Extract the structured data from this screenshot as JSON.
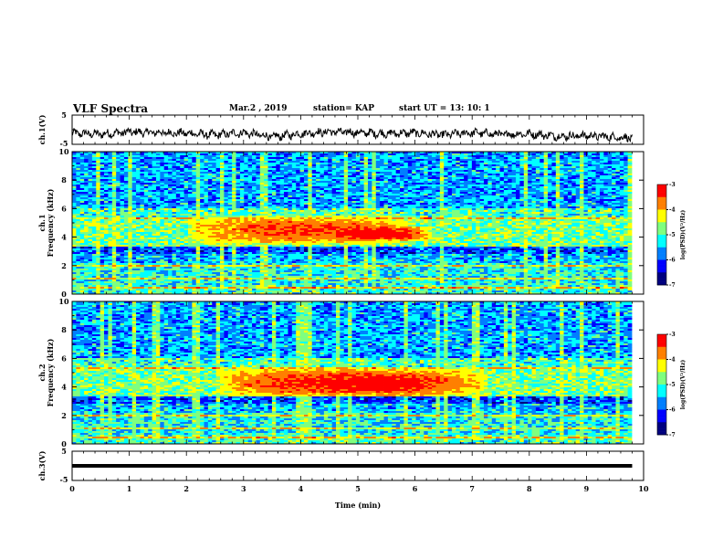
{
  "header": {
    "title": "VLF Spectra",
    "date": "Mar.2  , 2019",
    "station": "station= KAP",
    "start_ut": "start  UT  =    13: 10: 1"
  },
  "colors": {
    "colormap": [
      "#00007f",
      "#0000ff",
      "#007fff",
      "#00ffff",
      "#7fff7f",
      "#ffff00",
      "#ff7f00",
      "#ff0000"
    ]
  },
  "chart_data": [
    {
      "type": "line",
      "name": "ch1-waveform",
      "ylabel": "ch.1(V)",
      "ylim": [
        -5,
        5
      ],
      "yticks": [
        "5",
        "-5"
      ],
      "xlim": [
        0,
        10
      ],
      "x": [
        0,
        0.5,
        1,
        1.5,
        2,
        2.5,
        3,
        3.5,
        4,
        4.5,
        5,
        5.5,
        6,
        6.5,
        7,
        7.5,
        8,
        8.5,
        9,
        9.5,
        9.8
      ],
      "y": [
        -1.2,
        -1.5,
        -0.8,
        -1.0,
        -1.2,
        -1.8,
        -1.0,
        -2.5,
        -1.3,
        -0.7,
        -1.0,
        -1.3,
        -1.1,
        -1.8,
        -1.0,
        -1.6,
        -1.4,
        -2.2,
        -2.0,
        -2.5,
        -2.8
      ]
    },
    {
      "type": "heatmap",
      "name": "ch1-spectrogram",
      "ylabel": "ch.1\nFrequency  (kHz)",
      "xlim": [
        0,
        9.8
      ],
      "ylim": [
        0,
        10
      ],
      "yticks": [
        "0",
        "2",
        "4",
        "6",
        "8",
        "10"
      ],
      "colorbar": {
        "label": "log(PSD)(V²/Hz)",
        "range": [
          -7,
          -3
        ],
        "ticks": [
          "-3",
          "-4",
          "-5",
          "-6",
          "-7"
        ]
      },
      "features": [
        {
          "band_khz": [
            3.5,
            5.5
          ],
          "time_min": [
            2.0,
            6.0
          ],
          "level": -3.5
        },
        {
          "band_khz": [
            3.7,
            4.8
          ],
          "time_min": [
            4.3,
            6.3
          ],
          "level": -3.0
        }
      ]
    },
    {
      "type": "heatmap",
      "name": "ch2-spectrogram",
      "ylabel": "ch.2\nFrequency  (kHz)",
      "xlim": [
        0,
        9.8
      ],
      "ylim": [
        0,
        10
      ],
      "yticks": [
        "0",
        "2",
        "4",
        "6",
        "8",
        "10"
      ],
      "colorbar": {
        "label": "log(PSD)(V²/Hz)",
        "range": [
          -7,
          -3
        ],
        "ticks": [
          "-3",
          "-4",
          "-5",
          "-6",
          "-7"
        ]
      },
      "features": [
        {
          "band_khz": [
            3.3,
            5.3
          ],
          "time_min": [
            2.5,
            7.3
          ],
          "level": -3.2
        },
        {
          "band_khz": [
            3.6,
            4.8
          ],
          "time_min": [
            4.3,
            6.5
          ],
          "level": -3.0
        }
      ]
    },
    {
      "type": "line",
      "name": "ch3-waveform",
      "ylabel": "ch.3(V)",
      "ylim": [
        -5,
        5
      ],
      "yticks": [
        "5",
        "-5"
      ],
      "xlim": [
        0,
        10
      ],
      "x": [
        0,
        9.8
      ],
      "y": [
        0,
        0
      ]
    }
  ],
  "xaxis": {
    "label": "Time  (min)",
    "ticks": [
      "0",
      "1",
      "2",
      "3",
      "4",
      "5",
      "6",
      "7",
      "8",
      "9",
      "10"
    ]
  }
}
